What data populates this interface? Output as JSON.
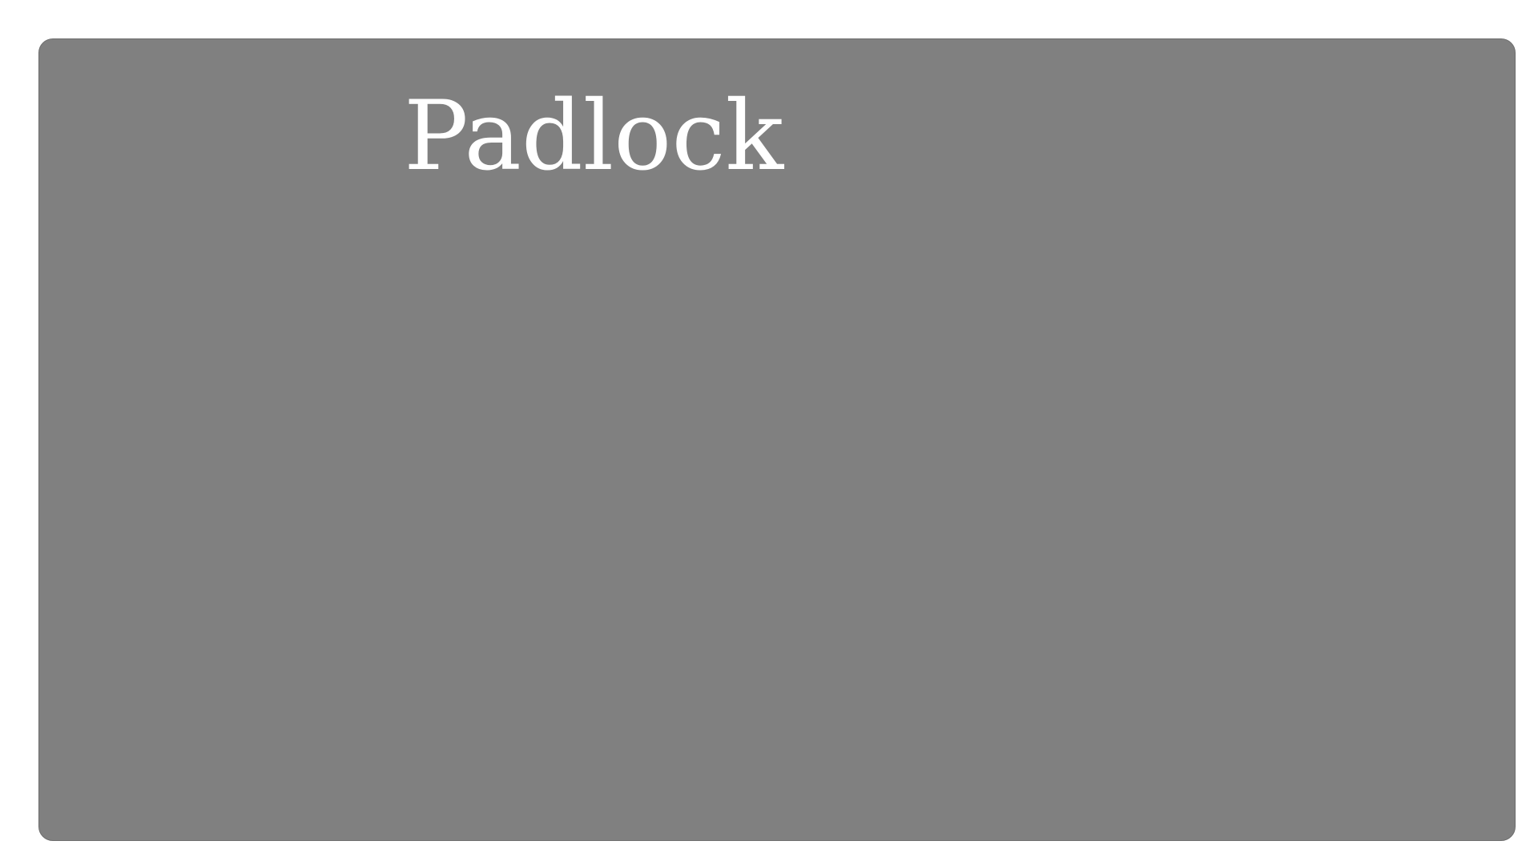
{
  "panel": {
    "title": "Padlock",
    "background": "#808080",
    "text_color": "#ffffff"
  }
}
